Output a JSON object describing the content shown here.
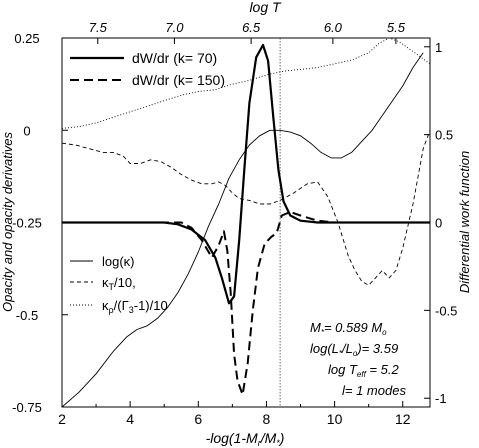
{
  "chart_data": {
    "type": "line",
    "x_label_bottom": "-log(1-M",
    "x_label_bottom_sub1": "r",
    "x_label_bottom_mid": "/M",
    "x_label_bottom_sub2": "*",
    "x_label_bottom_end": ")",
    "x_label_top": "log T",
    "y_label_left": "Opacity and opacity derivatives",
    "y_label_right": "Differential work function",
    "xlim": [
      2,
      12.8
    ],
    "ylim_left": [
      -0.75,
      0.25
    ],
    "ylim_right": [
      -1.05,
      1.05
    ],
    "x_ticks": [
      "2",
      "4",
      "6",
      "8",
      "10",
      "12"
    ],
    "x_tick_values": [
      2,
      4,
      6,
      8,
      10,
      12
    ],
    "y_left_ticks": [
      "0.25",
      "0",
      "-0.25",
      "-0.5",
      "-0.75"
    ],
    "y_left_tick_values": [
      0.25,
      0,
      -0.25,
      -0.5,
      -0.75
    ],
    "y_right_ticks": [
      "1",
      "0.5",
      "0",
      "-0.5",
      "-1"
    ],
    "y_right_tick_values": [
      1,
      0.5,
      0,
      -0.5,
      -1
    ],
    "top_ticks": [
      "7.5",
      "7.0",
      "6.5",
      "6.0",
      "5.5"
    ],
    "top_tick_x": [
      3.05,
      5.3,
      7.55,
      9.95,
      11.8
    ],
    "vline_x": 8.4,
    "legend_upper": [
      {
        "label": "dW/dr (k= 70)",
        "style": "solid-thick"
      },
      {
        "label": "dW/dr (k= 150)",
        "style": "dashed-thick"
      }
    ],
    "legend_lower": [
      {
        "label": "log(κ)",
        "style": "solid"
      },
      {
        "label": "κ",
        "sub": "T",
        "rest": "/10,",
        "style": "dashed"
      },
      {
        "label": "κ",
        "sub": "ρ",
        "rest": "/(Γ",
        "sub2": "3",
        "rest2": "-1)/10",
        "style": "dotted"
      }
    ],
    "annotations": [
      {
        "pre": "M",
        "sub": "*",
        "post": "= 0.589 M",
        "sub2": "o"
      },
      {
        "pre": "log(L",
        "sub": "*",
        "post": "/L",
        "sub2": "o",
        "post2": ")= 3.59"
      },
      {
        "pre": "log T",
        "sub": "eff",
        "post": " = 5.2"
      },
      {
        "pre": "l= 1 modes"
      }
    ],
    "series": [
      {
        "name": "log(κ)",
        "axis": "left",
        "style": "solid",
        "x": [
          2.0,
          2.5,
          3.0,
          3.5,
          3.9,
          4.2,
          4.5,
          4.8,
          5.1,
          5.4,
          5.7,
          6.0,
          6.3,
          6.6,
          6.9,
          7.2,
          7.5,
          7.8,
          8.1,
          8.4,
          8.7,
          9.0,
          9.3,
          9.6,
          9.9,
          10.2,
          10.5,
          10.8,
          11.1,
          11.4,
          11.7,
          12.0,
          12.3,
          12.6
        ],
        "y": [
          -0.75,
          -0.71,
          -0.66,
          -0.6,
          -0.56,
          -0.54,
          -0.53,
          -0.51,
          -0.48,
          -0.44,
          -0.39,
          -0.33,
          -0.26,
          -0.2,
          -0.13,
          -0.08,
          -0.04,
          -0.015,
          0.0,
          0.0,
          -0.005,
          -0.015,
          -0.035,
          -0.06,
          -0.075,
          -0.075,
          -0.06,
          -0.03,
          0.0,
          0.04,
          0.08,
          0.12,
          0.17,
          0.21
        ]
      },
      {
        "name": "κT/10",
        "axis": "left",
        "style": "dashed",
        "x": [
          2.0,
          2.4,
          2.8,
          3.2,
          3.5,
          3.8,
          4.0,
          4.3,
          4.6,
          4.9,
          5.2,
          5.5,
          5.8,
          6.1,
          6.4,
          6.6,
          6.8,
          7.0,
          7.2,
          7.5,
          7.8,
          8.1,
          8.4,
          8.8,
          9.2,
          9.5,
          9.8,
          10.1,
          10.4,
          10.6,
          10.8,
          11.0,
          11.2,
          11.4,
          11.6,
          11.8,
          12.0,
          12.3,
          12.6,
          12.8
        ],
        "y": [
          -0.035,
          -0.04,
          -0.05,
          -0.06,
          -0.06,
          -0.07,
          -0.09,
          -0.09,
          -0.08,
          -0.085,
          -0.1,
          -0.12,
          -0.135,
          -0.145,
          -0.145,
          -0.14,
          -0.15,
          -0.17,
          -0.185,
          -0.19,
          -0.2,
          -0.2,
          -0.19,
          -0.17,
          -0.145,
          -0.14,
          -0.18,
          -0.25,
          -0.34,
          -0.38,
          -0.41,
          -0.42,
          -0.4,
          -0.38,
          -0.4,
          -0.38,
          -0.32,
          -0.2,
          -0.05,
          0.0
        ]
      },
      {
        "name": "κρ/(Γ3-1)/10",
        "axis": "left",
        "style": "dotted",
        "x": [
          2.0,
          2.5,
          3.0,
          3.5,
          4.0,
          4.5,
          5.0,
          5.5,
          6.0,
          6.5,
          7.0,
          7.5,
          8.0,
          8.5,
          9.0,
          9.5,
          10.0,
          10.5,
          11.0,
          11.3,
          11.6,
          11.9,
          12.2,
          12.5,
          12.8
        ],
        "y": [
          0.005,
          0.01,
          0.02,
          0.035,
          0.05,
          0.065,
          0.08,
          0.095,
          0.105,
          0.11,
          0.125,
          0.135,
          0.15,
          0.16,
          0.165,
          0.17,
          0.18,
          0.19,
          0.21,
          0.235,
          0.25,
          0.24,
          0.22,
          0.2,
          0.18
        ]
      },
      {
        "name": "dW/dr (k= 70)",
        "axis": "right",
        "style": "solid-thick",
        "x": [
          2.0,
          5.0,
          5.4,
          5.8,
          6.2,
          6.5,
          6.7,
          6.9,
          7.05,
          7.2,
          7.35,
          7.5,
          7.7,
          7.9,
          8.05,
          8.2,
          8.35,
          8.5,
          8.7,
          9.0,
          9.5,
          10.0,
          12.8
        ],
        "y": [
          0.0,
          0.0,
          -0.01,
          -0.04,
          -0.1,
          -0.2,
          -0.32,
          -0.46,
          -0.42,
          -0.1,
          0.3,
          0.68,
          0.94,
          1.01,
          0.92,
          0.6,
          0.3,
          0.12,
          0.04,
          0.01,
          0.0,
          0.0,
          0.0
        ]
      },
      {
        "name": "dW/dr (k= 150)",
        "axis": "right",
        "style": "dashed-thick",
        "x": [
          2.0,
          5.5,
          5.8,
          6.1,
          6.4,
          6.6,
          6.75,
          6.85,
          6.95,
          7.05,
          7.15,
          7.3,
          7.45,
          7.6,
          7.75,
          7.95,
          8.15,
          8.3,
          8.45,
          8.7,
          9.0,
          9.5,
          10.0,
          10.5,
          12.8
        ],
        "y": [
          0.0,
          0.0,
          -0.03,
          -0.1,
          -0.2,
          -0.13,
          -0.05,
          -0.16,
          -0.4,
          -0.75,
          -0.9,
          -0.98,
          -0.8,
          -0.5,
          -0.26,
          -0.12,
          -0.08,
          -0.06,
          0.04,
          0.06,
          0.04,
          0.01,
          0.0,
          0.0,
          0.0
        ]
      }
    ]
  }
}
